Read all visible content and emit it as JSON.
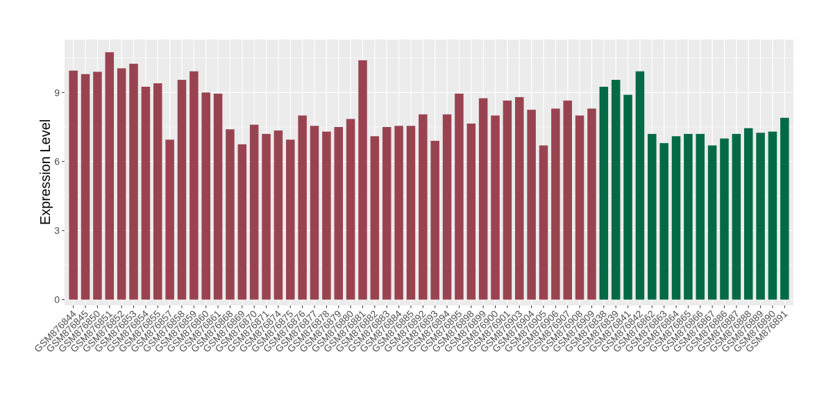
{
  "chart_data": {
    "type": "bar",
    "title": "",
    "xlabel": "",
    "ylabel": "Expression Level",
    "ylim": [
      -0.25,
      11.3
    ],
    "yticks": [
      0,
      3,
      6,
      9
    ],
    "grid": true,
    "legend": "none",
    "panel_background": "#EBEBEB",
    "grid_color": "#FFFFFF",
    "categories": [
      "GSM876844",
      "GSM876845",
      "GSM876850",
      "GSM876851",
      "GSM876852",
      "GSM876853",
      "GSM876854",
      "GSM876855",
      "GSM876857",
      "GSM876858",
      "GSM876859",
      "GSM876860",
      "GSM876861",
      "GSM876868",
      "GSM876869",
      "GSM876870",
      "GSM876871",
      "GSM876874",
      "GSM876875",
      "GSM876876",
      "GSM876877",
      "GSM876878",
      "GSM876879",
      "GSM876880",
      "GSM876881",
      "GSM876882",
      "GSM876883",
      "GSM876884",
      "GSM876885",
      "GSM876892",
      "GSM876893",
      "GSM876894",
      "GSM876895",
      "GSM876898",
      "GSM876899",
      "GSM876900",
      "GSM876901",
      "GSM876903",
      "GSM876904",
      "GSM876905",
      "GSM876906",
      "GSM876907",
      "GSM876908",
      "GSM876909",
      "GSM876838",
      "GSM876839",
      "GSM876841",
      "GSM876842",
      "GSM876862",
      "GSM876863",
      "GSM876864",
      "GSM876865",
      "GSM876866",
      "GSM876867",
      "GSM876886",
      "GSM876887",
      "GSM876888",
      "GSM876889",
      "GSM876890",
      "GSM876891"
    ],
    "values": [
      9.95,
      9.8,
      9.9,
      10.75,
      10.05,
      10.25,
      9.25,
      9.4,
      6.95,
      9.55,
      9.92,
      9.0,
      8.95,
      7.4,
      6.75,
      7.6,
      7.2,
      7.35,
      6.95,
      8.0,
      7.55,
      7.3,
      7.5,
      7.85,
      10.4,
      7.1,
      7.5,
      7.55,
      7.55,
      8.05,
      6.9,
      8.05,
      8.95,
      7.65,
      8.75,
      8.0,
      8.65,
      8.8,
      8.25,
      6.7,
      8.3,
      8.65,
      8.0,
      8.3,
      9.25,
      9.55,
      8.9,
      9.92,
      7.2,
      6.8,
      7.1,
      7.2,
      7.2,
      6.7,
      7.0,
      7.2,
      7.45,
      7.25,
      7.3,
      7.9
    ],
    "groups": [
      "a",
      "a",
      "a",
      "a",
      "a",
      "a",
      "a",
      "a",
      "a",
      "a",
      "a",
      "a",
      "a",
      "a",
      "a",
      "a",
      "a",
      "a",
      "a",
      "a",
      "a",
      "a",
      "a",
      "a",
      "a",
      "a",
      "a",
      "a",
      "a",
      "a",
      "a",
      "a",
      "a",
      "a",
      "a",
      "a",
      "a",
      "a",
      "a",
      "a",
      "a",
      "a",
      "a",
      "a",
      "b",
      "b",
      "b",
      "b",
      "b",
      "b",
      "b",
      "b",
      "b",
      "b",
      "b",
      "b",
      "b",
      "b",
      "b",
      "b"
    ],
    "group_colors": {
      "a": "#9A4350",
      "b": "#036A45"
    }
  }
}
